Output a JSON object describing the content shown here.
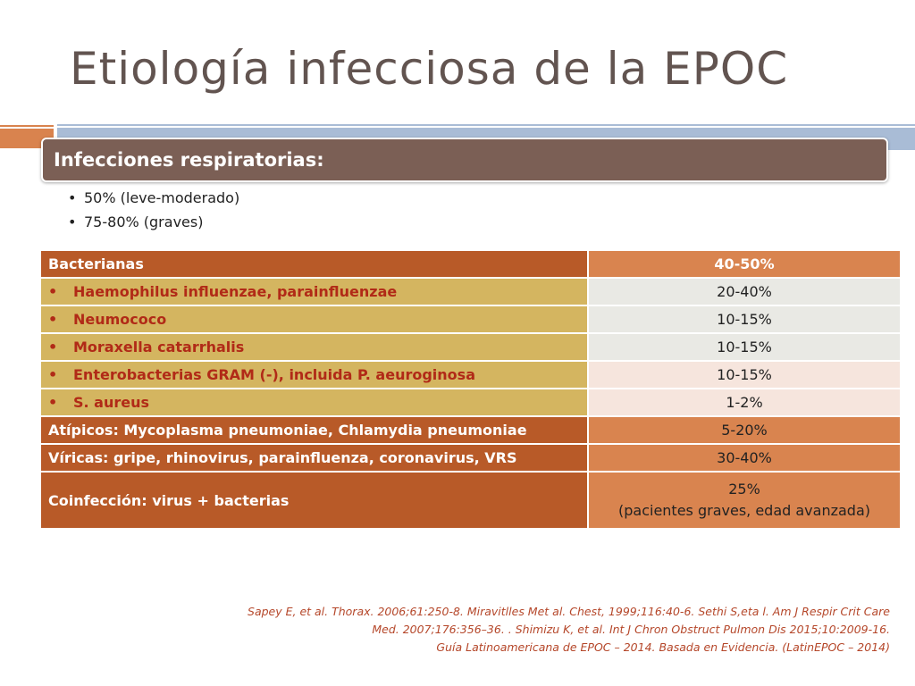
{
  "slide": {
    "title": "Etiología infecciosa de la EPOC"
  },
  "infections": {
    "header": "Infecciones respiratorias:",
    "bullets": [
      "50% (leve-moderado)",
      "75-80% (graves)"
    ]
  },
  "table": {
    "rows": [
      {
        "label": "Bacterianas",
        "value": "40-50%"
      },
      {
        "label": "Haemophilus influenzae, parainfluenzae",
        "value": "20-40%"
      },
      {
        "label": "Neumococo",
        "value": "10-15%"
      },
      {
        "label": "Moraxella catarrhalis",
        "value": "10-15%"
      },
      {
        "label": "Enterobacterias GRAM (-), incluida P. aeuroginosa",
        "value": "10-15%"
      },
      {
        "label": "S. aureus",
        "value": "1-2%"
      },
      {
        "label": "Atípicos: Mycoplasma pneumoniae, Chlamydia pneumoniae",
        "value": "5-20%"
      },
      {
        "label": "Víricas: gripe, rhinovirus, parainfluenza, coronavirus, VRS",
        "value": "30-40%"
      },
      {
        "label": "Coinfección: virus +  bacterias",
        "value_line1": "25%",
        "value_line2": "(pacientes graves,  edad avanzada)"
      }
    ],
    "bullet_glyph": "•"
  },
  "references": {
    "lines": [
      "Sapey E, et al. Thorax. 2006;61:250-8. Miravitlles Met al. Chest, 1999;116:40-6. Sethi S,eta l. Am J Respir Crit Care",
      "Med. 2007;176:356–36. . Shimizu K, et al. Int J Chron Obstruct Pulmon Dis 2015;10:2009-16.",
      "Guía Latinoamericana de EPOC – 2014. Basada en Evidencia. (LatinEPOC – 2014)"
    ]
  },
  "colors": {
    "title": "#625450",
    "header_box": "#7b5f55",
    "dark_orange": "#b85a28",
    "mustard": "#d4b560",
    "light_orange": "#d9844f",
    "red_text": "#b12a17"
  }
}
